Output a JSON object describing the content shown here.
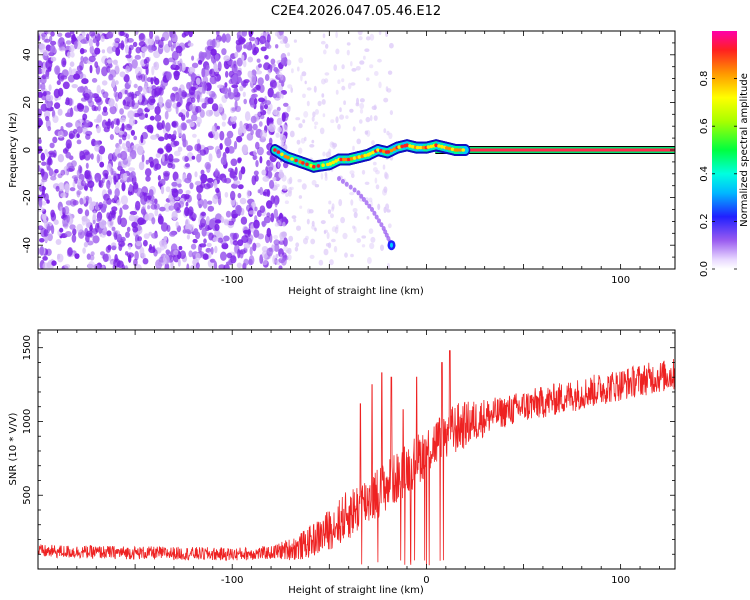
{
  "title": "C2E4.2026.047.05.46.E12",
  "chart_data": [
    {
      "type": "heatmap",
      "xlabel": "Height of straight line (km)",
      "ylabel": "Frequency (Hz)",
      "xlim": [
        -200,
        128
      ],
      "ylim": [
        -50,
        50
      ],
      "xticks": [
        -100,
        0,
        100
      ],
      "xtick_labels": [
        "-100",
        "",
        "100"
      ],
      "yticks": [
        -40,
        -20,
        0,
        20,
        40
      ],
      "ytick_labels": [
        "-40",
        "-20",
        "0",
        "20",
        "40"
      ],
      "colorbar": {
        "label": "Normalized spectral amplitude",
        "range": [
          0,
          1
        ],
        "ticks": [
          0.0,
          0.2,
          0.4,
          0.6,
          0.8
        ],
        "tick_labels": [
          "0.0",
          "0.2",
          "0.4",
          "0.6",
          "0.8"
        ]
      },
      "ridge": {
        "x": [
          -78,
          -72,
          -65,
          -58,
          -50,
          -45,
          -40,
          -35,
          -30,
          -25,
          -20,
          -15,
          -10,
          -5,
          0,
          5,
          10,
          15,
          20
        ],
        "y": [
          0,
          -3,
          -5,
          -7,
          -6,
          -4,
          -4,
          -3,
          -2,
          0,
          -1,
          1,
          2,
          1,
          1,
          2,
          1,
          0,
          0
        ]
      },
      "steady_band": {
        "x_start": 20,
        "x_end": 128,
        "y": 0
      },
      "branch": {
        "x": [
          -45,
          -35,
          -28,
          -22,
          -18
        ],
        "y": [
          -12,
          -18,
          -25,
          -33,
          -40
        ]
      },
      "noise_region": {
        "x_start": -200,
        "x_end": -78
      }
    },
    {
      "type": "line",
      "xlabel": "Height of straight line (km)",
      "ylabel": "SNR (10 * V/V)",
      "xlim": [
        -200,
        128
      ],
      "ylim": [
        0,
        1620
      ],
      "xticks": [
        -100,
        0,
        100
      ],
      "xtick_labels": [
        "-100",
        "0",
        "100"
      ],
      "yticks": [
        500,
        1000,
        1500
      ],
      "ytick_labels": [
        "500",
        "1000",
        "1500"
      ],
      "series_color": "#ee2222",
      "trend": {
        "x": [
          -200,
          -150,
          -100,
          -80,
          -65,
          -55,
          -45,
          -35,
          -25,
          -15,
          -5,
          5,
          15,
          30,
          50,
          70,
          90,
          110,
          128
        ],
        "y": [
          120,
          110,
          100,
          110,
          150,
          220,
          320,
          420,
          520,
          620,
          740,
          860,
          950,
          1030,
          1100,
          1160,
          1220,
          1280,
          1320
        ]
      },
      "spikes": [
        {
          "x": -34,
          "y": 1120
        },
        {
          "x": -28,
          "y": 1250
        },
        {
          "x": -23,
          "y": 1330
        },
        {
          "x": -18,
          "y": 1300
        },
        {
          "x": -12,
          "y": 1080
        },
        {
          "x": -5,
          "y": 1300
        },
        {
          "x": 8,
          "y": 1400
        },
        {
          "x": 12,
          "y": 1480
        }
      ]
    }
  ]
}
